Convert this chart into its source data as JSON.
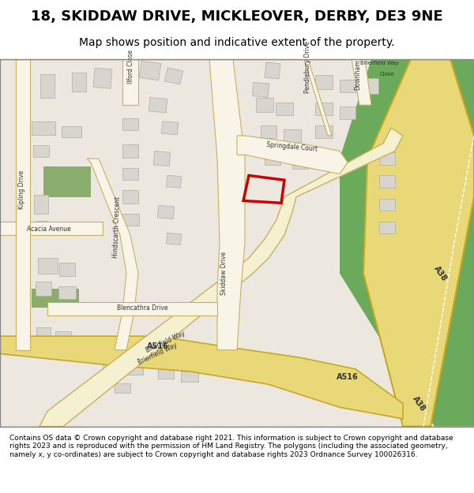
{
  "title": "18, SKIDDAW DRIVE, MICKLEOVER, DERBY, DE3 9NE",
  "subtitle": "Map shows position and indicative extent of the property.",
  "footer": "Contains OS data © Crown copyright and database right 2021. This information is subject to Crown copyright and database rights 2023 and is reproduced with the permission of HM Land Registry. The polygons (including the associated geometry, namely x, y co-ordinates) are subject to Crown copyright and database rights 2023 Ordnance Survey 100026316.",
  "bg_color": "#f0ede8",
  "road_color": "#f5f0d8",
  "road_border_color": "#c8b870",
  "major_road_color": "#e8d878",
  "major_road_border": "#c8a820",
  "building_color": "#d8d4ce",
  "building_edge": "#b0aca8",
  "green_color": "#8aad6e",
  "property_color": "#cc0000",
  "a38_color": "#6aaa5a",
  "road_line_color": "#ffffff",
  "map_bg": "#ece8e0"
}
